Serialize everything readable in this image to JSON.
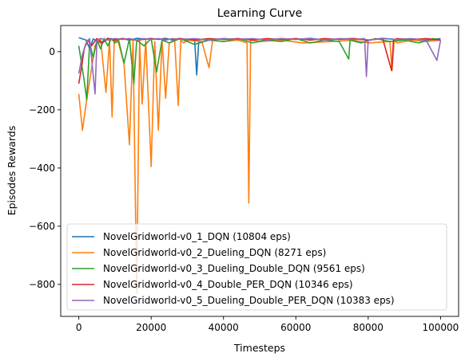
{
  "chart_data": {
    "type": "line",
    "title": "Learning Curve",
    "xlabel": "Timesteps",
    "ylabel": "Episodes Rewards",
    "xlim": [
      -5000,
      105000
    ],
    "ylim": [
      -910,
      90
    ],
    "xticks": [
      0,
      20000,
      40000,
      60000,
      80000,
      100000
    ],
    "yticks": [
      -800,
      -600,
      -400,
      -200,
      0
    ],
    "xtick_labels": [
      "0",
      "20000",
      "40000",
      "60000",
      "80000",
      "100000"
    ],
    "ytick_labels": [
      "−800",
      "−600",
      "−400",
      "−200",
      "0"
    ],
    "grid": false,
    "legend_position": "lower-left",
    "series": [
      {
        "name": "NovelGridworld-v0_1_DQN (10804 eps)",
        "color": "#1f77b4",
        "x": [
          0,
          2000,
          3000,
          4000,
          6000,
          8000,
          10000,
          12000,
          14000,
          16000,
          18000,
          20000,
          22000,
          24000,
          26000,
          28000,
          30000,
          32000,
          32600,
          33200,
          36000,
          40000,
          44000,
          48000,
          52000,
          56000,
          60000,
          64000,
          68000,
          72000,
          76000,
          80000,
          84000,
          88000,
          92000,
          96000,
          100000
        ],
        "y": [
          48,
          40,
          10,
          44,
          30,
          46,
          42,
          45,
          40,
          46,
          44,
          45,
          42,
          46,
          40,
          45,
          38,
          44,
          -80,
          42,
          40,
          45,
          42,
          44,
          40,
          45,
          42,
          46,
          40,
          44,
          45,
          40,
          46,
          42,
          44,
          40,
          45
        ]
      },
      {
        "name": "NovelGridworld-v0_2_Dueling_DQN (8271 eps)",
        "color": "#ff7f0e",
        "x": [
          0,
          1000,
          2000,
          3500,
          4500,
          6000,
          7500,
          8500,
          9200,
          9800,
          11000,
          12500,
          14000,
          15000,
          16000,
          16800,
          17500,
          18500,
          20000,
          21000,
          22000,
          23000,
          24000,
          25000,
          26500,
          27500,
          28200,
          29000,
          30000,
          34000,
          36000,
          37000,
          40000,
          44000,
          46500,
          47000,
          47500,
          50000,
          56000,
          62000,
          70000,
          76000,
          80000,
          86000,
          86600,
          87200,
          88000,
          92000,
          96000,
          100000
        ],
        "y": [
          -145,
          -270,
          -180,
          -60,
          20,
          45,
          -140,
          40,
          -225,
          40,
          30,
          -40,
          -320,
          40,
          -830,
          40,
          -180,
          40,
          -395,
          35,
          -270,
          40,
          -160,
          30,
          40,
          -185,
          40,
          30,
          40,
          35,
          -55,
          40,
          35,
          40,
          30,
          -520,
          40,
          35,
          40,
          30,
          35,
          40,
          30,
          35,
          -65,
          40,
          30,
          40,
          35,
          40
        ]
      },
      {
        "name": "NovelGridworld-v0_3_Dueling_Double_DQN (9561 eps)",
        "color": "#2ca02c",
        "x": [
          0,
          1500,
          2200,
          3000,
          4000,
          5000,
          6000,
          7000,
          8000,
          9000,
          10000,
          11000,
          12500,
          14000,
          15200,
          16000,
          18000,
          20000,
          21500,
          23000,
          25000,
          28000,
          32000,
          36000,
          40000,
          44000,
          48000,
          52000,
          56000,
          60000,
          64000,
          68000,
          72000,
          74600,
          75000,
          78000,
          82000,
          86000,
          90000,
          94000,
          98000,
          100000
        ],
        "y": [
          20,
          -100,
          -165,
          30,
          -20,
          40,
          10,
          45,
          20,
          45,
          30,
          40,
          -40,
          45,
          -110,
          40,
          20,
          45,
          -70,
          40,
          30,
          45,
          25,
          40,
          35,
          45,
          30,
          40,
          35,
          45,
          30,
          40,
          35,
          -25,
          40,
          30,
          45,
          35,
          40,
          30,
          45,
          40
        ]
      },
      {
        "name": "NovelGridworld-v0_4_Double_PER_DQN (10346 eps)",
        "color": "#d62728",
        "x": [
          0,
          800,
          1500,
          2500,
          3500,
          5000,
          6500,
          8000,
          10000,
          12000,
          16000,
          20000,
          24000,
          28000,
          32000,
          36000,
          40000,
          44000,
          48000,
          52000,
          56000,
          60000,
          64000,
          68000,
          72000,
          76000,
          80000,
          84000,
          86500,
          87000,
          88000,
          92000,
          96000,
          100000
        ],
        "y": [
          -110,
          -50,
          10,
          40,
          20,
          45,
          30,
          45,
          40,
          45,
          40,
          45,
          42,
          45,
          40,
          45,
          42,
          45,
          40,
          45,
          42,
          45,
          40,
          45,
          42,
          45,
          40,
          45,
          -65,
          40,
          45,
          42,
          45,
          40
        ]
      },
      {
        "name": "NovelGridworld-v0_5_Dueling_Double_PER_DQN (10383 eps)",
        "color": "#9467bd",
        "x": [
          0,
          1000,
          2000,
          3000,
          4500,
          5000,
          6000,
          8000,
          10000,
          12000,
          14000,
          16000,
          18000,
          20000,
          22000,
          24000,
          26000,
          28000,
          32000,
          36000,
          40000,
          44000,
          48000,
          52000,
          56000,
          60000,
          64000,
          68000,
          72000,
          76000,
          79000,
          79500,
          80000,
          84000,
          88000,
          92000,
          96000,
          99000,
          100000
        ],
        "y": [
          -75,
          -10,
          30,
          45,
          -145,
          40,
          45,
          40,
          45,
          42,
          45,
          40,
          45,
          42,
          45,
          40,
          45,
          42,
          45,
          40,
          45,
          42,
          45,
          40,
          45,
          42,
          45,
          40,
          45,
          42,
          45,
          -85,
          40,
          45,
          42,
          45,
          40,
          -30,
          40
        ]
      }
    ]
  }
}
